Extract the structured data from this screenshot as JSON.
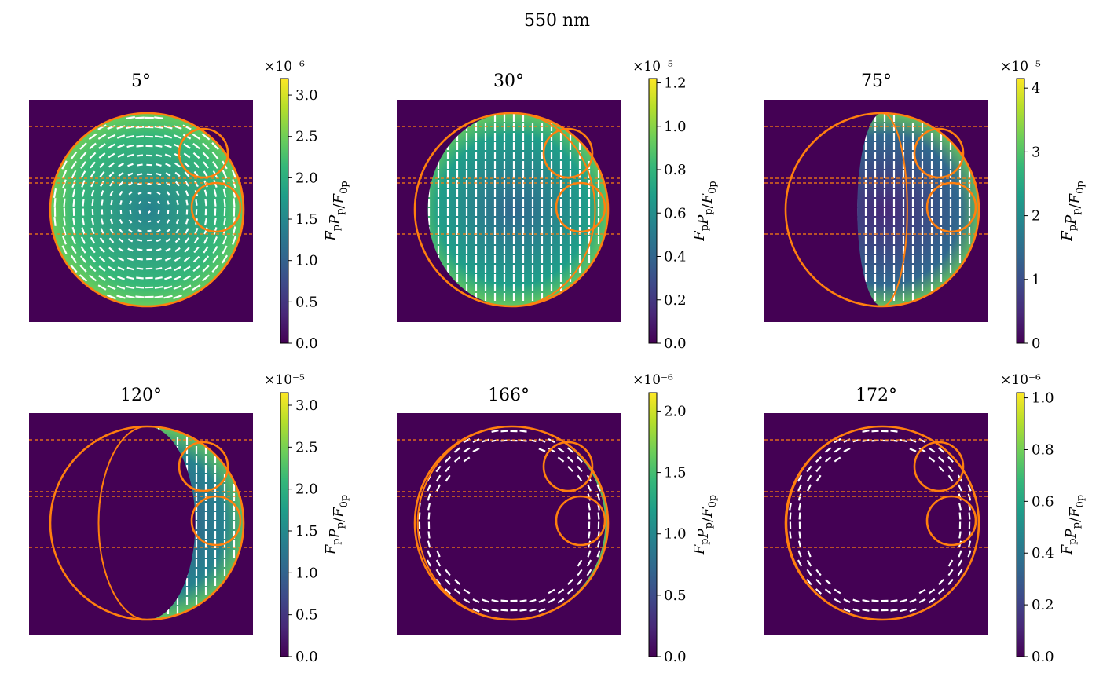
{
  "figure": {
    "title": "550 nm"
  },
  "colormap": [
    "#440154",
    "#482878",
    "#3e4989",
    "#31688e",
    "#26828e",
    "#1f9e89",
    "#35b779",
    "#6ece58",
    "#b5de2b",
    "#fde725"
  ],
  "colors": {
    "background": "#440154",
    "outline": "#ff7f0e",
    "vectors": "#ffffff"
  },
  "colorbar_label": "F_p P_p / F_0p",
  "chart_data": [
    {
      "type": "heatmap",
      "title": "5°",
      "phase_angle_deg": 5,
      "scale_label": "×10⁻⁶",
      "colorbar_ticks": [
        "0.0",
        "0.5",
        "1.0",
        "1.5",
        "2.0",
        "2.5",
        "3.0"
      ],
      "colorbar_range": [
        0,
        3.2
      ],
      "fill_level": 0.62,
      "vector_orientation": "radial"
    },
    {
      "type": "heatmap",
      "title": "30°",
      "phase_angle_deg": 30,
      "scale_label": "×10⁻⁵",
      "colorbar_ticks": [
        "0.0",
        "0.2",
        "0.4",
        "0.6",
        "0.8",
        "1.0",
        "1.2"
      ],
      "colorbar_range": [
        0,
        1.22
      ],
      "fill_level": 0.55,
      "vector_orientation": "vertical"
    },
    {
      "type": "heatmap",
      "title": "75°",
      "phase_angle_deg": 75,
      "scale_label": "×10⁻⁵",
      "colorbar_ticks": [
        "0",
        "1",
        "2",
        "3",
        "4"
      ],
      "colorbar_range": [
        0,
        4.15
      ],
      "fill_level": 0.38,
      "vector_orientation": "vertical"
    },
    {
      "type": "heatmap",
      "title": "120°",
      "phase_angle_deg": 120,
      "scale_label": "×10⁻⁵",
      "colorbar_ticks": [
        "0.0",
        "0.5",
        "1.0",
        "1.5",
        "2.0",
        "2.5",
        "3.0"
      ],
      "colorbar_range": [
        0,
        3.15
      ],
      "fill_level": 0.42,
      "vector_orientation": "vertical"
    },
    {
      "type": "heatmap",
      "title": "166°",
      "phase_angle_deg": 166,
      "scale_label": "×10⁻⁶",
      "colorbar_ticks": [
        "0.0",
        "0.5",
        "1.0",
        "1.5",
        "2.0"
      ],
      "colorbar_range": [
        0,
        2.15
      ],
      "fill_level": 0.4,
      "vector_orientation": "limb"
    },
    {
      "type": "heatmap",
      "title": "172°",
      "phase_angle_deg": 172,
      "scale_label": "×10⁻⁶",
      "colorbar_ticks": [
        "0.0",
        "0.2",
        "0.4",
        "0.6",
        "0.8",
        "1.0"
      ],
      "colorbar_range": [
        0,
        1.02
      ],
      "fill_level": 0.35,
      "vector_orientation": "limb"
    }
  ]
}
